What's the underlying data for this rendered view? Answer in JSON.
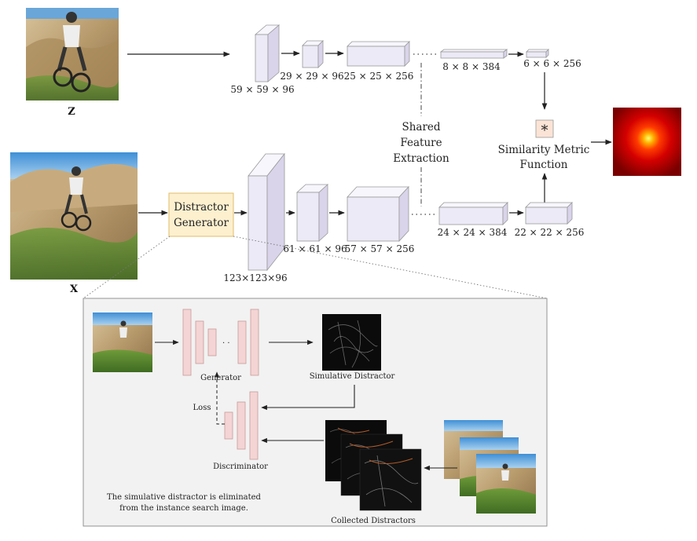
{
  "images": {
    "z_label": "Z",
    "x_label": "X"
  },
  "top_branch": {
    "dims": [
      "59 × 59 × 96",
      "29 × 29 × 96",
      "25 × 25 × 256",
      "8 × 8 × 384",
      "6 × 6 × 256"
    ]
  },
  "bottom_branch": {
    "dims": [
      "123×123×96",
      "61 × 61 × 96",
      "57 × 57 × 256",
      "24 × 24 × 384",
      "22 × 22 × 256"
    ]
  },
  "distractor_generator": {
    "line1": "Distractor",
    "line2": "Generator"
  },
  "shared": {
    "line1": "Shared",
    "line2": "Feature",
    "line3": "Extraction"
  },
  "similarity": {
    "symbol": "*",
    "line1": "Similarity Metric",
    "line2": "Function"
  },
  "inset": {
    "generator": "Generator",
    "simulative": "Simulative Distractor",
    "loss": "Loss",
    "discriminator": "Discriminator",
    "collected": "Collected Distractors",
    "note_line1": "The simulative distractor is eliminated",
    "note_line2": "from the instance search image."
  },
  "colors": {
    "block_face": "#eceaf6",
    "block_top": "#f7f6fc",
    "block_side": "#d9d4ea",
    "generator_fill": "#fdf0cf",
    "generator_stroke": "#e0bd6a",
    "gan_block": "#f4d4d4",
    "gan_stroke": "#c79a9a",
    "inset_bg": "#f2f2f2"
  }
}
